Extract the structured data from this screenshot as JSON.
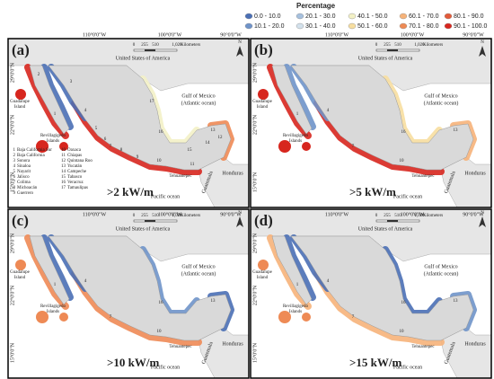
{
  "legend": {
    "title": "Percentage",
    "items": [
      {
        "label": "0.0 - 10.0",
        "color": "#4a6fb5"
      },
      {
        "label": "10.1 - 20.0",
        "color": "#6f93c9"
      },
      {
        "label": "20.1 - 30.0",
        "color": "#a6c0de"
      },
      {
        "label": "30.1 - 40.0",
        "color": "#d3e1ec"
      },
      {
        "label": "40.1 - 50.0",
        "color": "#f3f1c6"
      },
      {
        "label": "50.1 - 60.0",
        "color": "#f7dea0"
      },
      {
        "label": "60.1 - 70.0",
        "color": "#f6b37a"
      },
      {
        "label": "70.1 - 80.0",
        "color": "#ee8a55"
      },
      {
        "label": "80.1 - 90.0",
        "color": "#e25a3a"
      },
      {
        "label": "90.1 - 100.0",
        "color": "#d7261e"
      }
    ]
  },
  "map_labels": {
    "longitudes": [
      "110°0'0\"W",
      "100°0'0\"W",
      "90°0'0\"W"
    ],
    "latitudes": [
      "29°0'0\"N",
      "22°0'0\"N",
      "15°0'0\"N"
    ],
    "scale": [
      "0",
      "255",
      "510",
      "1,020",
      "Kilometers"
    ],
    "north": "N",
    "usa": "United States of America",
    "gulf": [
      "Gulf of Mexico",
      "(Atlantic ocean)"
    ],
    "pacific": "Pacific ocean",
    "guadalupe": [
      "Guadalupe",
      "Island"
    ],
    "revillagigedo": [
      "Revillagigedo",
      "Islands"
    ],
    "honduras": "Honduras",
    "guatemala": "Guatemala",
    "tehuantepec": "Tehuantepec"
  },
  "states": [
    {
      "number": "1",
      "name": "Baja California Sur"
    },
    {
      "number": "2",
      "name": "Baja California"
    },
    {
      "number": "3",
      "name": "Sonora"
    },
    {
      "number": "4",
      "name": "Sinaloa"
    },
    {
      "number": "5",
      "name": "Nayarit"
    },
    {
      "number": "6",
      "name": "Jalisco"
    },
    {
      "number": "7",
      "name": "Colima"
    },
    {
      "number": "8",
      "name": "Michoacán"
    },
    {
      "number": "9",
      "name": "Guerrero"
    },
    {
      "number": "10",
      "name": "Oaxaca"
    },
    {
      "number": "11",
      "name": "Chiapas"
    },
    {
      "number": "12",
      "name": "Quintana Roo"
    },
    {
      "number": "13",
      "name": "Yucatán"
    },
    {
      "number": "14",
      "name": "Campeche"
    },
    {
      "number": "15",
      "name": "Tabasco"
    },
    {
      "number": "16",
      "name": "Veracruz"
    },
    {
      "number": "17",
      "name": "Tamaulipas"
    }
  ],
  "panels": [
    {
      "label": "(a)",
      "threshold": ">2 kW/m"
    },
    {
      "label": "(b)",
      "threshold": ">5 kW/m"
    },
    {
      "label": "(c)",
      "threshold": ">10 kW/m"
    },
    {
      "label": "(d)",
      "threshold": ">15 kW/m"
    }
  ]
}
